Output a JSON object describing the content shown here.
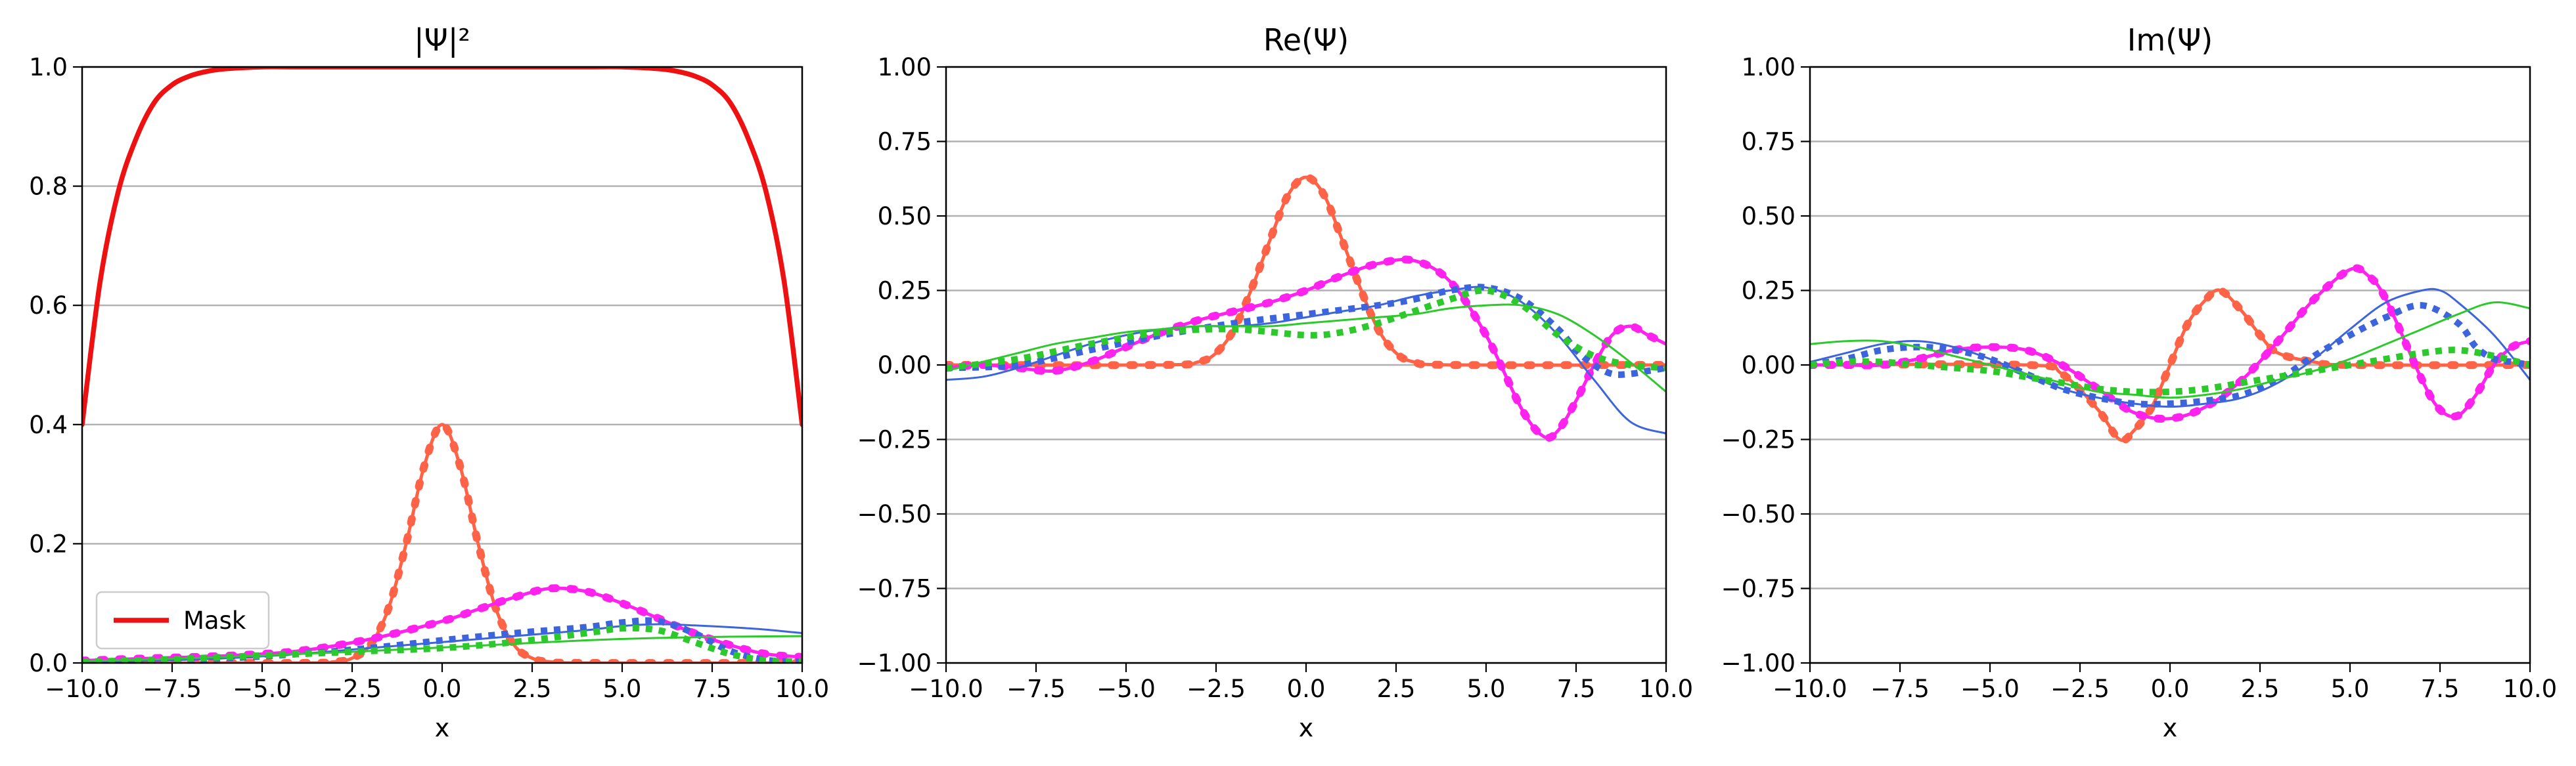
{
  "chart_data": [
    {
      "type": "line",
      "title": "|Ψ|²",
      "xlabel": "x",
      "ylabel": "",
      "xlim": [
        -10,
        10
      ],
      "ylim": [
        0,
        1
      ],
      "xticks": [
        -10,
        -7.5,
        -5,
        -2.5,
        0,
        2.5,
        5,
        7.5,
        10
      ],
      "xtick_labels": [
        "−10.0",
        "−7.5",
        "−5.0",
        "−2.5",
        "0.0",
        "2.5",
        "5.0",
        "7.5",
        "10.0"
      ],
      "yticks": [
        0,
        0.2,
        0.4,
        0.6,
        0.8,
        1.0
      ],
      "ytick_labels": [
        "0.0",
        "0.2",
        "0.4",
        "0.6",
        "0.8",
        "1.0"
      ],
      "grid": "horizontal",
      "legend": {
        "position": "lower-left",
        "entries": [
          {
            "name": "Mask",
            "color": "#ee1111"
          }
        ]
      },
      "series": [
        {
          "name": "Mask",
          "color": "#ee1111",
          "style": "thick",
          "x": [
            -10,
            -9.5,
            -9,
            -8.5,
            -8,
            -7.5,
            -7,
            -6.5,
            -6,
            -5,
            -4,
            -2,
            0,
            2,
            4,
            5,
            6,
            6.5,
            7,
            7.5,
            8,
            8.5,
            9,
            9.5,
            10
          ],
          "y": [
            0.4,
            0.64,
            0.79,
            0.88,
            0.94,
            0.97,
            0.985,
            0.993,
            0.997,
            1.0,
            1.0,
            1.0,
            1.0,
            1.0,
            1.0,
            1.0,
            0.997,
            0.993,
            0.985,
            0.97,
            0.94,
            0.88,
            0.79,
            0.64,
            0.4
          ]
        },
        {
          "color": "#ff6347",
          "style": "solid-marked",
          "x": [
            -10,
            -4,
            -3,
            -2.5,
            -2,
            -1.5,
            -1,
            -0.5,
            0,
            0.5,
            1,
            1.5,
            2,
            2.5,
            3,
            4,
            10
          ],
          "y": [
            0,
            0.0,
            0.002,
            0.008,
            0.03,
            0.09,
            0.2,
            0.33,
            0.4,
            0.33,
            0.2,
            0.09,
            0.03,
            0.008,
            0.002,
            0.0,
            0
          ]
        },
        {
          "color": "#ff22ee",
          "style": "solid-marked",
          "x": [
            -10,
            -8,
            -6,
            -4,
            -2,
            0,
            1,
            2,
            3,
            4,
            5,
            6,
            7,
            8,
            9,
            10
          ],
          "y": [
            0.004,
            0.008,
            0.012,
            0.02,
            0.04,
            0.07,
            0.09,
            0.11,
            0.125,
            0.12,
            0.1,
            0.075,
            0.05,
            0.03,
            0.015,
            0.01
          ]
        },
        {
          "color": "#3c64dc",
          "style": "thin",
          "x": [
            -10,
            -8,
            -6,
            -4,
            -2,
            0,
            2,
            4,
            5,
            6,
            7,
            8,
            9,
            10
          ],
          "y": [
            0.002,
            0.004,
            0.008,
            0.015,
            0.025,
            0.035,
            0.045,
            0.055,
            0.062,
            0.065,
            0.063,
            0.06,
            0.056,
            0.05
          ]
        },
        {
          "color": "#3c64dc",
          "style": "dotted",
          "x": [
            -10,
            -8,
            -6,
            -4,
            -2,
            0,
            2,
            4,
            5,
            6,
            7,
            8,
            9,
            10
          ],
          "y": [
            0.002,
            0.004,
            0.008,
            0.015,
            0.025,
            0.038,
            0.05,
            0.06,
            0.068,
            0.07,
            0.05,
            0.02,
            0.005,
            0.002
          ]
        },
        {
          "color": "#2cc82c",
          "style": "thin",
          "x": [
            -10,
            -8,
            -6,
            -4,
            -2,
            0,
            2,
            4,
            6,
            8,
            10
          ],
          "y": [
            0.003,
            0.006,
            0.01,
            0.015,
            0.02,
            0.026,
            0.032,
            0.038,
            0.042,
            0.044,
            0.045
          ]
        },
        {
          "color": "#2cc82c",
          "style": "dotted",
          "x": [
            -10,
            -8,
            -6,
            -4,
            -2,
            0,
            2,
            4,
            5,
            6,
            7,
            8,
            9,
            10
          ],
          "y": [
            0.002,
            0.005,
            0.01,
            0.015,
            0.02,
            0.025,
            0.035,
            0.05,
            0.058,
            0.055,
            0.035,
            0.015,
            0.004,
            0.002
          ]
        }
      ]
    },
    {
      "type": "line",
      "title": "Re(Ψ)",
      "xlabel": "x",
      "ylabel": "",
      "xlim": [
        -10,
        10
      ],
      "ylim": [
        -1,
        1
      ],
      "xticks": [
        -10,
        -7.5,
        -5,
        -2.5,
        0,
        2.5,
        5,
        7.5,
        10
      ],
      "xtick_labels": [
        "−10.0",
        "−7.5",
        "−5.0",
        "−2.5",
        "0.0",
        "2.5",
        "5.0",
        "7.5",
        "10.0"
      ],
      "yticks": [
        -1,
        -0.75,
        -0.5,
        -0.25,
        0,
        0.25,
        0.5,
        0.75,
        1
      ],
      "ytick_labels": [
        "−1.00",
        "−0.75",
        "−0.50",
        "−0.25",
        "0.00",
        "0.25",
        "0.50",
        "0.75",
        "1.00"
      ],
      "grid": "horizontal",
      "series": [
        {
          "color": "#ff6347",
          "style": "solid-marked",
          "x": [
            -10,
            -4,
            -3,
            -2.5,
            -2,
            -1.5,
            -1,
            -0.5,
            0,
            0.5,
            1,
            1.5,
            2,
            2.5,
            3,
            4,
            10
          ],
          "y": [
            0,
            0.0,
            0.01,
            0.04,
            0.12,
            0.26,
            0.42,
            0.57,
            0.63,
            0.57,
            0.42,
            0.26,
            0.12,
            0.04,
            0.01,
            0.0,
            0
          ]
        },
        {
          "color": "#ff22ee",
          "style": "solid-marked",
          "x": [
            -10,
            -9,
            -8,
            -7,
            -6,
            -5,
            -4,
            -3,
            -2,
            -1,
            0,
            1,
            2,
            3,
            4,
            5,
            6,
            6.6,
            7,
            7.5,
            8,
            8.5,
            9,
            9.5,
            10
          ],
          "y": [
            -0.01,
            0.0,
            -0.01,
            -0.02,
            0.01,
            0.06,
            0.11,
            0.15,
            0.18,
            0.21,
            0.25,
            0.3,
            0.34,
            0.35,
            0.28,
            0.1,
            -0.15,
            -0.24,
            -0.22,
            -0.12,
            0.0,
            0.1,
            0.13,
            0.1,
            0.07
          ]
        },
        {
          "color": "#3c64dc",
          "style": "thin",
          "x": [
            -10,
            -9,
            -8,
            -7,
            -6,
            -5,
            -4,
            -3,
            -2,
            -1,
            0,
            1,
            2,
            3,
            4,
            5,
            6,
            7,
            8,
            9,
            10
          ],
          "y": [
            -0.05,
            -0.04,
            -0.01,
            0.03,
            0.07,
            0.1,
            0.12,
            0.13,
            0.13,
            0.14,
            0.16,
            0.18,
            0.2,
            0.23,
            0.25,
            0.26,
            0.21,
            0.1,
            -0.05,
            -0.19,
            -0.23
          ]
        },
        {
          "color": "#3c64dc",
          "style": "dotted",
          "x": [
            -10,
            -8,
            -6,
            -4,
            -2,
            0,
            2,
            3,
            4,
            5,
            6,
            7,
            7.5,
            8,
            8.5,
            9,
            9.5,
            10
          ],
          "y": [
            -0.01,
            0.0,
            0.05,
            0.1,
            0.14,
            0.17,
            0.2,
            0.22,
            0.25,
            0.26,
            0.22,
            0.12,
            0.05,
            0.0,
            -0.03,
            -0.03,
            -0.02,
            -0.01
          ]
        },
        {
          "color": "#2cc82c",
          "style": "thin",
          "x": [
            -10,
            -9,
            -8,
            -7,
            -6,
            -5,
            -4,
            -3,
            -2,
            -1,
            0,
            1,
            2,
            3,
            4,
            5,
            6,
            7,
            8,
            9,
            10
          ],
          "y": [
            -0.02,
            0.01,
            0.04,
            0.07,
            0.09,
            0.11,
            0.12,
            0.13,
            0.13,
            0.13,
            0.14,
            0.15,
            0.16,
            0.17,
            0.19,
            0.2,
            0.2,
            0.17,
            0.1,
            0.01,
            -0.09
          ]
        },
        {
          "color": "#2cc82c",
          "style": "dotted",
          "x": [
            -10,
            -8,
            -6,
            -4,
            -2,
            0,
            1,
            2,
            3,
            4,
            5,
            6,
            7,
            8,
            9,
            10
          ],
          "y": [
            -0.01,
            0.02,
            0.07,
            0.11,
            0.12,
            0.1,
            0.11,
            0.14,
            0.18,
            0.22,
            0.25,
            0.2,
            0.1,
            0.03,
            0.0,
            -0.01
          ]
        }
      ]
    },
    {
      "type": "line",
      "title": "Im(Ψ)",
      "xlabel": "x",
      "ylabel": "",
      "xlim": [
        -10,
        10
      ],
      "ylim": [
        -1,
        1
      ],
      "xticks": [
        -10,
        -7.5,
        -5,
        -2.5,
        0,
        2.5,
        5,
        7.5,
        10
      ],
      "xtick_labels": [
        "−10.0",
        "−7.5",
        "−5.0",
        "−2.5",
        "0.0",
        "2.5",
        "5.0",
        "7.5",
        "10.0"
      ],
      "yticks": [
        -1,
        -0.75,
        -0.5,
        -0.25,
        0,
        0.25,
        0.5,
        0.75,
        1
      ],
      "ytick_labels": [
        "−1.00",
        "−0.75",
        "−0.50",
        "−0.25",
        "0.00",
        "0.25",
        "0.50",
        "0.75",
        "1.00"
      ],
      "grid": "horizontal",
      "series": [
        {
          "color": "#ff6347",
          "style": "solid-marked",
          "x": [
            -10,
            -4,
            -3,
            -2,
            -1.4,
            -1,
            -0.5,
            0,
            0.5,
            1,
            1.4,
            2,
            2.5,
            3,
            4,
            5,
            10
          ],
          "y": [
            0,
            0.0,
            -0.03,
            -0.15,
            -0.25,
            -0.22,
            -0.14,
            0.0,
            0.14,
            0.22,
            0.25,
            0.18,
            0.1,
            0.04,
            0.01,
            0.0,
            0
          ]
        },
        {
          "color": "#ff22ee",
          "style": "solid-marked",
          "x": [
            -10,
            -9,
            -8,
            -7,
            -6,
            -5,
            -4,
            -3,
            -2,
            -1,
            0,
            1,
            2,
            3,
            4,
            5,
            5.5,
            6,
            7,
            7.5,
            8,
            8.5,
            9,
            9.5,
            10
          ],
          "y": [
            0.0,
            0.0,
            0.0,
            0.02,
            0.05,
            0.06,
            0.05,
            0.0,
            -0.08,
            -0.16,
            -0.18,
            -0.14,
            -0.05,
            0.08,
            0.22,
            0.32,
            0.3,
            0.22,
            -0.05,
            -0.15,
            -0.17,
            -0.1,
            0.0,
            0.06,
            0.08
          ]
        },
        {
          "color": "#3c64dc",
          "style": "thin",
          "x": [
            -10,
            -9,
            -8,
            -7,
            -6,
            -5,
            -4,
            -3,
            -2,
            -1,
            0,
            1,
            2,
            3,
            4,
            5,
            6,
            7,
            7.5,
            8,
            9,
            10
          ],
          "y": [
            0.01,
            0.04,
            0.07,
            0.08,
            0.06,
            0.02,
            -0.03,
            -0.08,
            -0.11,
            -0.13,
            -0.14,
            -0.13,
            -0.11,
            -0.06,
            0.02,
            0.12,
            0.21,
            0.25,
            0.25,
            0.21,
            0.1,
            -0.05
          ]
        },
        {
          "color": "#3c64dc",
          "style": "dotted",
          "x": [
            -10,
            -9,
            -8,
            -7,
            -6,
            -5,
            -4,
            -3,
            -2,
            -1,
            0,
            1,
            2,
            3,
            4,
            5,
            6,
            7,
            8,
            8.5,
            9,
            9.5,
            10
          ],
          "y": [
            0.0,
            0.02,
            0.05,
            0.06,
            0.05,
            0.02,
            -0.03,
            -0.08,
            -0.11,
            -0.13,
            -0.13,
            -0.12,
            -0.1,
            -0.05,
            0.03,
            0.1,
            0.16,
            0.2,
            0.14,
            0.06,
            0.02,
            0.01,
            0.0
          ]
        },
        {
          "color": "#2cc82c",
          "style": "thin",
          "x": [
            -10,
            -9,
            -8,
            -7,
            -6,
            -5,
            -4,
            -3,
            -2,
            -1,
            0,
            1,
            2,
            3,
            4,
            5,
            6,
            7,
            8,
            9,
            10
          ],
          "y": [
            0.07,
            0.08,
            0.08,
            0.06,
            0.03,
            0.0,
            -0.03,
            -0.06,
            -0.09,
            -0.1,
            -0.11,
            -0.1,
            -0.08,
            -0.05,
            -0.02,
            0.02,
            0.07,
            0.12,
            0.17,
            0.21,
            0.19
          ]
        },
        {
          "color": "#2cc82c",
          "style": "dotted",
          "x": [
            -10,
            -9,
            -8,
            -7,
            -6,
            -5,
            -4,
            -3,
            -2,
            -1,
            0,
            1,
            2,
            3,
            4,
            5,
            6,
            7,
            8,
            9,
            10
          ],
          "y": [
            0.0,
            0.01,
            0.01,
            0.0,
            -0.01,
            -0.02,
            -0.04,
            -0.06,
            -0.08,
            -0.09,
            -0.09,
            -0.08,
            -0.06,
            -0.04,
            -0.02,
            0.0,
            0.02,
            0.04,
            0.05,
            0.03,
            0.0
          ]
        }
      ]
    }
  ]
}
